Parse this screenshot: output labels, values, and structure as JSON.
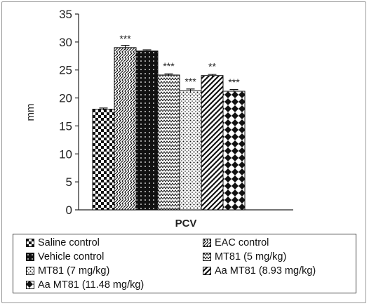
{
  "chart_data": {
    "type": "bar",
    "xlabel": "PCV",
    "ylabel": "mm",
    "ylim": [
      0,
      35
    ],
    "yticks": [
      "0",
      "5",
      "10",
      "15",
      "20",
      "25",
      "30",
      "35"
    ],
    "grid": false,
    "legend_placement": "bottom",
    "series": [
      {
        "name": "Saline control",
        "value": 18.0,
        "error": 0.2,
        "sig": "",
        "pattern": "checker"
      },
      {
        "name": "EAC control",
        "value": 29.0,
        "error": 0.4,
        "sig": "***",
        "pattern": "wave-diag"
      },
      {
        "name": "Vehicle control",
        "value": 28.4,
        "error": 0.2,
        "sig": "",
        "pattern": "dark-dots"
      },
      {
        "name": "MT81 (5 mg/kg)",
        "value": 24.1,
        "error": 0.2,
        "sig": "***",
        "pattern": "zigzag"
      },
      {
        "name": "MT81 (7 mg/kg)",
        "value": 21.3,
        "error": 0.3,
        "sig": "***",
        "pattern": "dots"
      },
      {
        "name": "Aa MT81 (8.93 mg/kg)",
        "value": 24.0,
        "error": 0.2,
        "sig": "**",
        "pattern": "diag"
      },
      {
        "name": "Aa MT81 (11.48 mg/kg)",
        "value": 21.2,
        "error": 0.3,
        "sig": "***",
        "pattern": "diamond"
      }
    ]
  }
}
